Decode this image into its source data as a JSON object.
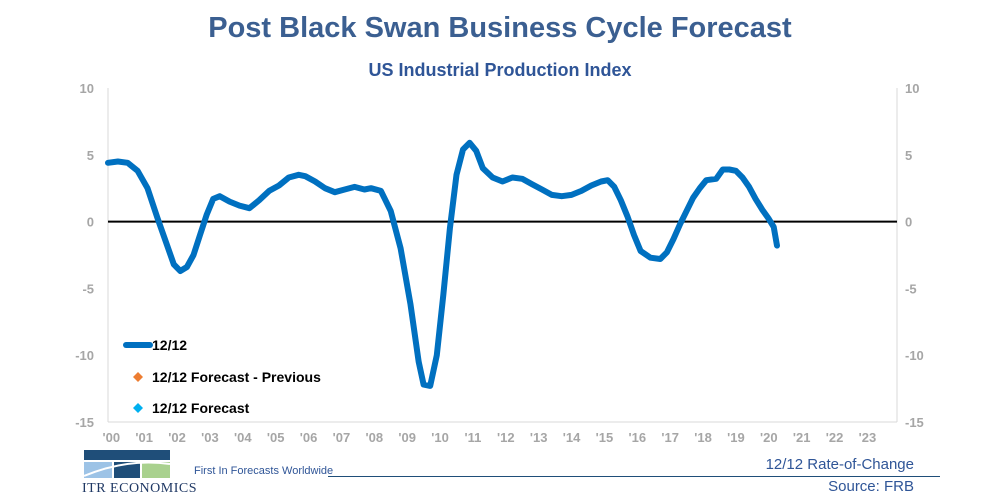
{
  "chart_data": {
    "type": "line",
    "title": "Post Black Swan Business Cycle Forecast",
    "subtitle": "US Industrial Production Index",
    "x_tick_labels": [
      "'00",
      "'01",
      "'02",
      "'03",
      "'04",
      "'05",
      "'06",
      "'07",
      "'08",
      "'09",
      "'10",
      "'11",
      "'12",
      "'13",
      "'14",
      "'15",
      "'16",
      "'17",
      "'18",
      "'19",
      "'20",
      "'21",
      "'22",
      "'23"
    ],
    "xlim": [
      2000,
      2024
    ],
    "ylim": [
      -15,
      10
    ],
    "y_ticks": [
      10,
      5,
      0,
      -5,
      -10,
      -15
    ],
    "y_tick_labels_left": [
      "10",
      "5",
      "0",
      "-5",
      "-10",
      "-15"
    ],
    "y_tick_labels_right": [
      "10",
      "5",
      "0",
      "-5",
      "-10",
      "-15"
    ],
    "zero_line": true,
    "grid": false,
    "legend_position": "bottom-left",
    "legend": [
      "12/12",
      "12/12 Forecast - Previous",
      "12/12 Forecast"
    ],
    "series": [
      {
        "name": "12/12",
        "color": "#0070c0",
        "points": [
          [
            2000.0,
            4.4
          ],
          [
            2000.3,
            4.5
          ],
          [
            2000.6,
            4.4
          ],
          [
            2000.9,
            3.8
          ],
          [
            2001.2,
            2.5
          ],
          [
            2001.5,
            0.3
          ],
          [
            2001.8,
            -1.8
          ],
          [
            2002.0,
            -3.2
          ],
          [
            2002.2,
            -3.7
          ],
          [
            2002.4,
            -3.4
          ],
          [
            2002.6,
            -2.5
          ],
          [
            2002.8,
            -1.0
          ],
          [
            2003.0,
            0.5
          ],
          [
            2003.2,
            1.7
          ],
          [
            2003.4,
            1.9
          ],
          [
            2003.7,
            1.5
          ],
          [
            2004.0,
            1.2
          ],
          [
            2004.3,
            1.0
          ],
          [
            2004.6,
            1.6
          ],
          [
            2004.9,
            2.3
          ],
          [
            2005.2,
            2.7
          ],
          [
            2005.5,
            3.3
          ],
          [
            2005.8,
            3.5
          ],
          [
            2006.0,
            3.4
          ],
          [
            2006.3,
            3.0
          ],
          [
            2006.6,
            2.5
          ],
          [
            2006.9,
            2.2
          ],
          [
            2007.2,
            2.4
          ],
          [
            2007.5,
            2.6
          ],
          [
            2007.8,
            2.4
          ],
          [
            2008.0,
            2.5
          ],
          [
            2008.3,
            2.3
          ],
          [
            2008.6,
            0.8
          ],
          [
            2008.9,
            -2.0
          ],
          [
            2009.2,
            -6.2
          ],
          [
            2009.45,
            -10.5
          ],
          [
            2009.6,
            -12.2
          ],
          [
            2009.8,
            -12.3
          ],
          [
            2010.0,
            -10.0
          ],
          [
            2010.2,
            -5.5
          ],
          [
            2010.4,
            -0.5
          ],
          [
            2010.6,
            3.5
          ],
          [
            2010.8,
            5.4
          ],
          [
            2011.0,
            5.9
          ],
          [
            2011.2,
            5.3
          ],
          [
            2011.4,
            4.0
          ],
          [
            2011.7,
            3.3
          ],
          [
            2012.0,
            3.0
          ],
          [
            2012.3,
            3.3
          ],
          [
            2012.6,
            3.2
          ],
          [
            2012.9,
            2.8
          ],
          [
            2013.2,
            2.4
          ],
          [
            2013.5,
            2.0
          ],
          [
            2013.8,
            1.9
          ],
          [
            2014.1,
            2.0
          ],
          [
            2014.4,
            2.3
          ],
          [
            2014.7,
            2.7
          ],
          [
            2015.0,
            3.0
          ],
          [
            2015.2,
            3.1
          ],
          [
            2015.4,
            2.6
          ],
          [
            2015.6,
            1.6
          ],
          [
            2015.8,
            0.4
          ],
          [
            2016.0,
            -1.0
          ],
          [
            2016.2,
            -2.2
          ],
          [
            2016.5,
            -2.7
          ],
          [
            2016.8,
            -2.8
          ],
          [
            2017.0,
            -2.3
          ],
          [
            2017.2,
            -1.3
          ],
          [
            2017.4,
            -0.2
          ],
          [
            2017.6,
            0.8
          ],
          [
            2017.8,
            1.8
          ],
          [
            2018.0,
            2.5
          ],
          [
            2018.2,
            3.1
          ],
          [
            2018.5,
            3.2
          ],
          [
            2018.7,
            3.9
          ],
          [
            2018.9,
            3.9
          ],
          [
            2019.1,
            3.8
          ],
          [
            2019.3,
            3.3
          ],
          [
            2019.5,
            2.6
          ],
          [
            2019.7,
            1.7
          ],
          [
            2019.9,
            0.9
          ],
          [
            2020.1,
            0.2
          ],
          [
            2020.25,
            -0.4
          ],
          [
            2020.35,
            -1.8
          ]
        ]
      }
    ]
  },
  "legend_items": [
    {
      "label": "12/12",
      "color": "#0070c0"
    },
    {
      "label": "12/12 Forecast - Previous",
      "color": "#ed7d31"
    },
    {
      "label": "12/12 Forecast",
      "color": "#00b0f0"
    }
  ],
  "footer": {
    "tagline": "First In Forecasts Worldwide",
    "metric": "12/12 Rate-of-Change",
    "source": "Source: FRB",
    "logo_text": "ITR ECONOMICS"
  },
  "colors": {
    "title": "#3b5f91",
    "axis": "#d9d9d9",
    "zero_line": "#000000",
    "logo_dark": "#1f4e79",
    "logo_light": "#9dc3e6",
    "logo_green": "#a9d18e"
  }
}
